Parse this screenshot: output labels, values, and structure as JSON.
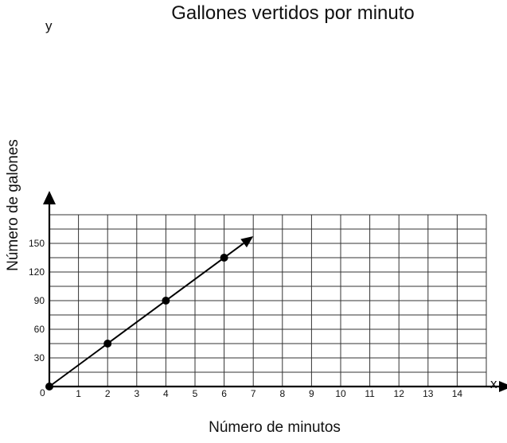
{
  "chart_data": {
    "type": "line",
    "title": "Gallones vertidos  por minuto",
    "xlabel": "Número de minutos",
    "ylabel": "Número de galones",
    "x_var": "x",
    "y_var": "y",
    "origin_label": "0",
    "xlim": [
      0,
      15
    ],
    "ylim": [
      0,
      180
    ],
    "x_ticks": [
      "1",
      "2",
      "3",
      "4",
      "5",
      "6",
      "7",
      "8",
      "9",
      "10",
      "11",
      "12",
      "13",
      "14"
    ],
    "y_ticks": [
      "30",
      "60",
      "90",
      "120",
      "150"
    ],
    "grid": true,
    "line": {
      "from": [
        0,
        0
      ],
      "to": [
        7,
        157.5
      ],
      "arrow_end": true
    },
    "points": [
      {
        "x": 0,
        "y": 0
      },
      {
        "x": 2,
        "y": 45
      },
      {
        "x": 4,
        "y": 90
      },
      {
        "x": 6,
        "y": 135
      }
    ]
  }
}
